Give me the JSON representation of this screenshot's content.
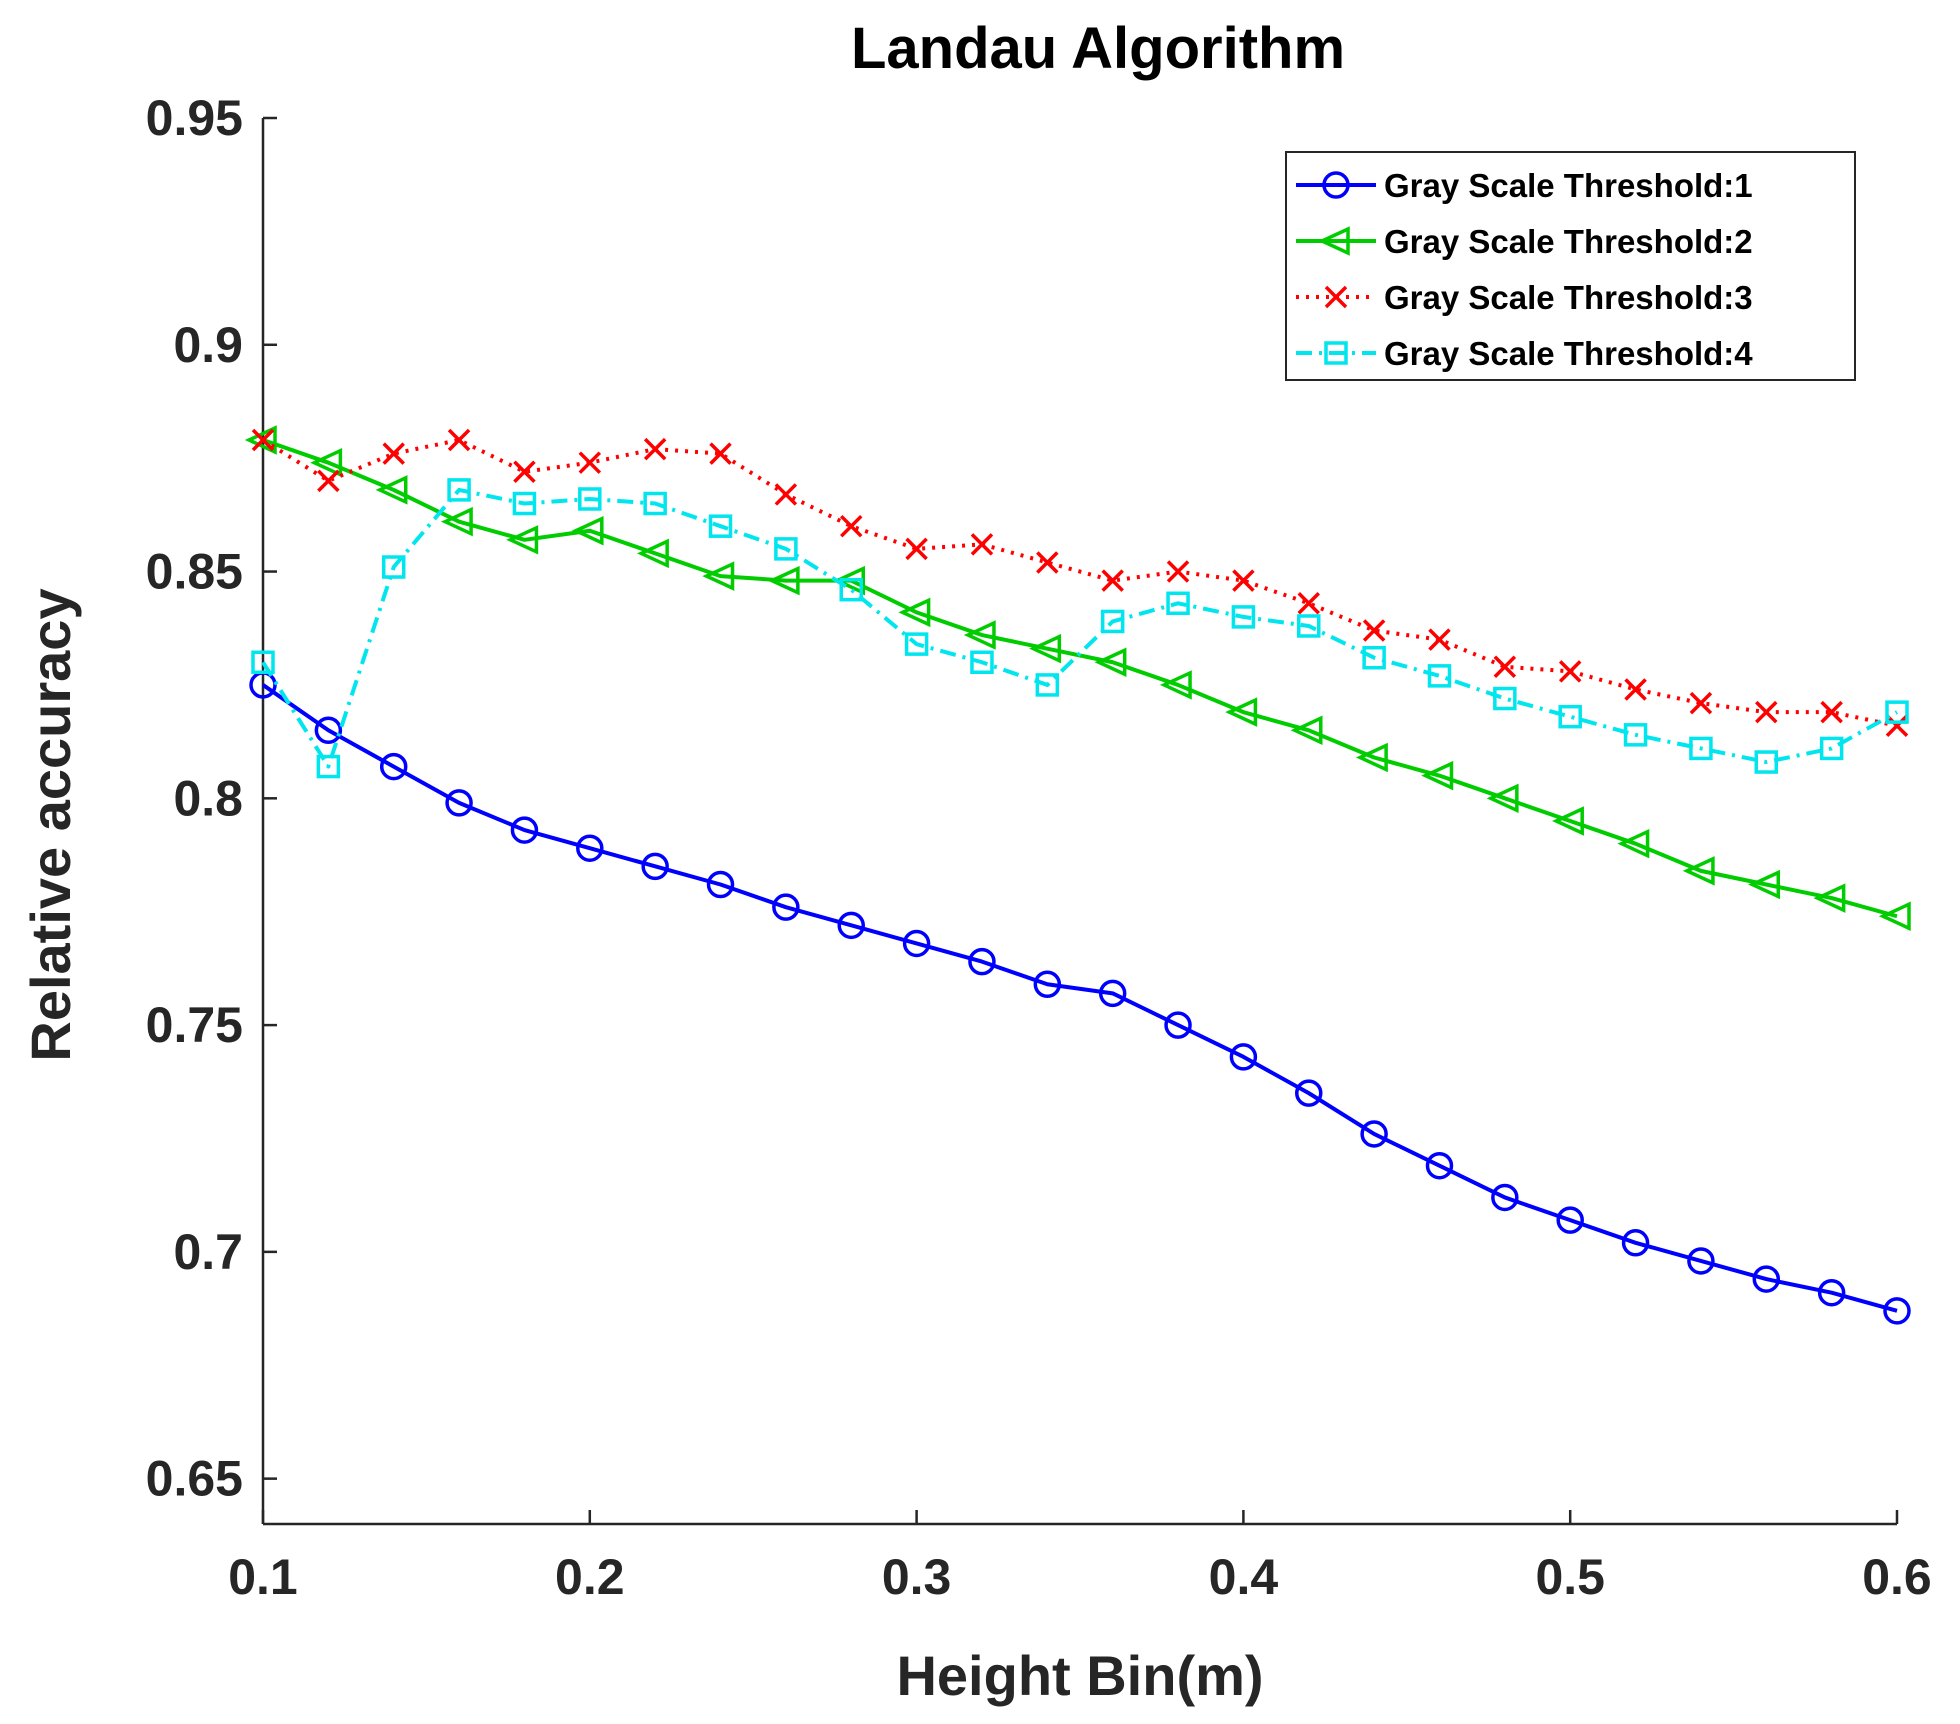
{
  "chart_data": {
    "type": "line",
    "title": "Landau Algorithm",
    "xlabel": "Height Bin(m)",
    "ylabel": "Relative accuracy",
    "xlim": [
      0.1,
      0.6
    ],
    "ylim": [
      0.64,
      0.95
    ],
    "xticks": [
      0.1,
      0.2,
      0.3,
      0.4,
      0.5,
      0.6
    ],
    "xtick_labels": [
      "0.1",
      "0.2",
      "0.3",
      "0.4",
      "0.5",
      "0.6"
    ],
    "yticks": [
      0.65,
      0.7,
      0.75,
      0.8,
      0.85,
      0.9,
      0.95
    ],
    "ytick_labels": [
      "0.65",
      "0.7",
      "0.75",
      "0.8",
      "0.85",
      "0.9",
      "0.95"
    ],
    "grid": false,
    "legend_position": "top-right",
    "x": [
      0.1,
      0.12,
      0.14,
      0.16,
      0.18,
      0.2,
      0.22,
      0.24,
      0.26,
      0.28,
      0.3,
      0.32,
      0.34,
      0.36,
      0.38,
      0.4,
      0.42,
      0.44,
      0.46,
      0.48,
      0.5,
      0.52,
      0.54,
      0.56,
      0.58,
      0.6
    ],
    "series": [
      {
        "name": "Gray Scale Threshold:1",
        "color": "#0000ff",
        "marker": "circle",
        "line": "solid",
        "values": [
          0.825,
          0.815,
          0.807,
          0.799,
          0.793,
          0.789,
          0.785,
          0.781,
          0.776,
          0.772,
          0.768,
          0.764,
          0.759,
          0.757,
          0.75,
          0.743,
          0.735,
          0.726,
          0.719,
          0.712,
          0.707,
          0.702,
          0.698,
          0.694,
          0.691,
          0.687
        ]
      },
      {
        "name": "Gray Scale Threshold:2",
        "color": "#00cc00",
        "marker": "triangle-left",
        "line": "solid",
        "values": [
          0.879,
          0.874,
          0.868,
          0.861,
          0.857,
          0.859,
          0.854,
          0.849,
          0.848,
          0.848,
          0.841,
          0.836,
          0.833,
          0.83,
          0.825,
          0.819,
          0.815,
          0.809,
          0.805,
          0.8,
          0.795,
          0.79,
          0.784,
          0.781,
          0.778,
          0.774
        ]
      },
      {
        "name": "Gray Scale Threshold:3",
        "color": "#ff0000",
        "marker": "x",
        "line": "dotted",
        "values": [
          0.879,
          0.87,
          0.876,
          0.879,
          0.872,
          0.874,
          0.877,
          0.876,
          0.867,
          0.86,
          0.855,
          0.856,
          0.852,
          0.848,
          0.85,
          0.848,
          0.843,
          0.837,
          0.835,
          0.829,
          0.828,
          0.824,
          0.821,
          0.819,
          0.819,
          0.816
        ]
      },
      {
        "name": "Gray Scale Threshold:4",
        "color": "#00e5ee",
        "marker": "square",
        "line": "dashdot",
        "values": [
          0.83,
          0.807,
          0.851,
          0.868,
          0.865,
          0.866,
          0.865,
          0.86,
          0.855,
          0.846,
          0.834,
          0.83,
          0.825,
          0.839,
          0.843,
          0.84,
          0.838,
          0.831,
          0.827,
          0.822,
          0.818,
          0.814,
          0.811,
          0.808,
          0.811,
          0.819
        ]
      }
    ]
  }
}
